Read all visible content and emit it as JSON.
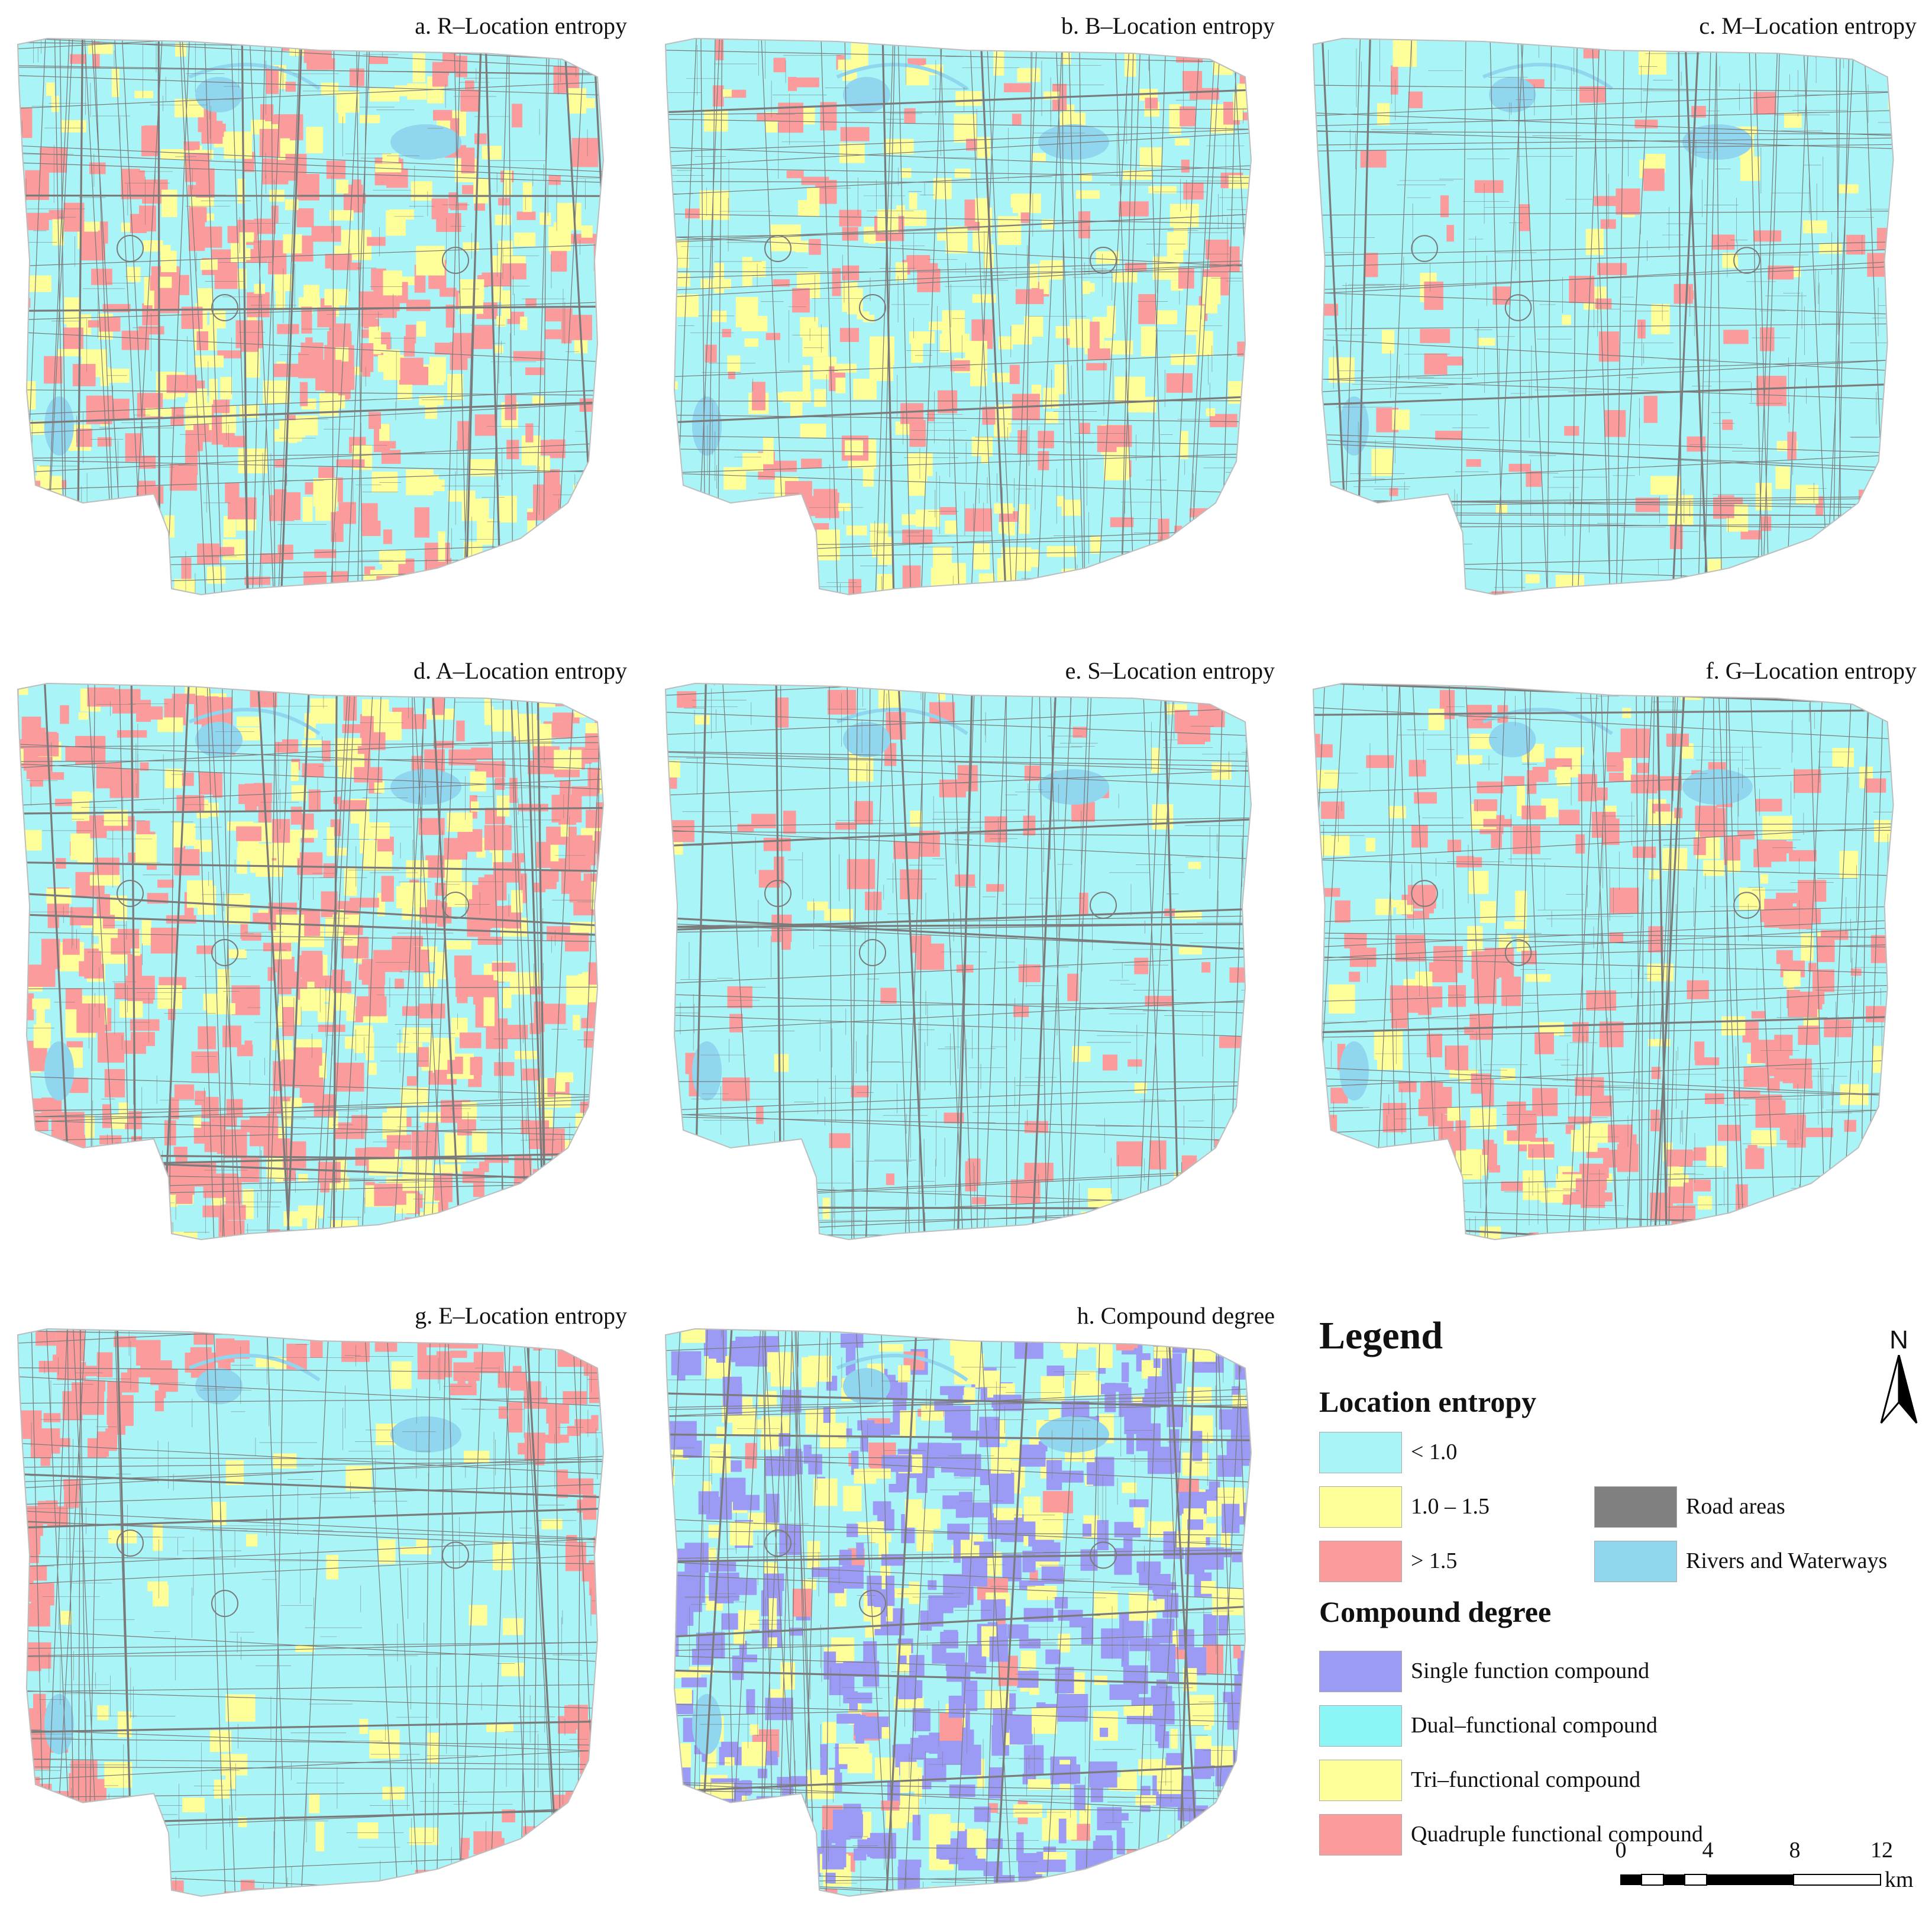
{
  "panels": [
    {
      "id": "a",
      "title": "a. R–Location entropy",
      "dominant": "yellow-red-mix"
    },
    {
      "id": "b",
      "title": "b. B–Location entropy",
      "dominant": "yellow-mix"
    },
    {
      "id": "c",
      "title": "c. M–Location entropy",
      "dominant": "sparse-red"
    },
    {
      "id": "d",
      "title": "d. A–Location entropy",
      "dominant": "red-mix"
    },
    {
      "id": "e",
      "title": "e. S–Location entropy",
      "dominant": "sparse-red"
    },
    {
      "id": "f",
      "title": "f. G–Location entropy",
      "dominant": "red-ring"
    },
    {
      "id": "g",
      "title": "g. E–Location entropy",
      "dominant": "edge-red"
    },
    {
      "id": "h",
      "title": "h. Compound degree",
      "dominant": "compound"
    }
  ],
  "legend": {
    "title": "Legend",
    "location_entropy_heading": "Location entropy",
    "location_entropy_items": [
      {
        "label": "< 1.0",
        "color": "#a8f4f6"
      },
      {
        "label": "1.0 – 1.5",
        "color": "#ffff99"
      },
      {
        "label": "> 1.5",
        "color": "#fb9b9b"
      }
    ],
    "other_items": [
      {
        "label": "Road areas",
        "color": "#808080"
      },
      {
        "label": "Rivers and Waterways",
        "color": "#8fd6ee"
      }
    ],
    "compound_heading": "Compound degree",
    "compound_items": [
      {
        "label": "Single function compound",
        "color": "#9b9bf5"
      },
      {
        "label": "Dual–functional compound",
        "color": "#8cf5f5"
      },
      {
        "label": "Tri–functional compound",
        "color": "#ffff99"
      },
      {
        "label": "Quadruple functional compound",
        "color": "#fb9b9b"
      }
    ]
  },
  "north_arrow": {
    "label": "N"
  },
  "scale_bar": {
    "ticks": [
      "0",
      "4",
      "8",
      "12"
    ],
    "unit": "km"
  },
  "colors": {
    "base": "#a8f4f6",
    "yellow": "#ffff99",
    "red": "#fb9b9b",
    "road": "#7a7a7a",
    "water": "#8fd6ee",
    "purple": "#9b9bf5"
  }
}
